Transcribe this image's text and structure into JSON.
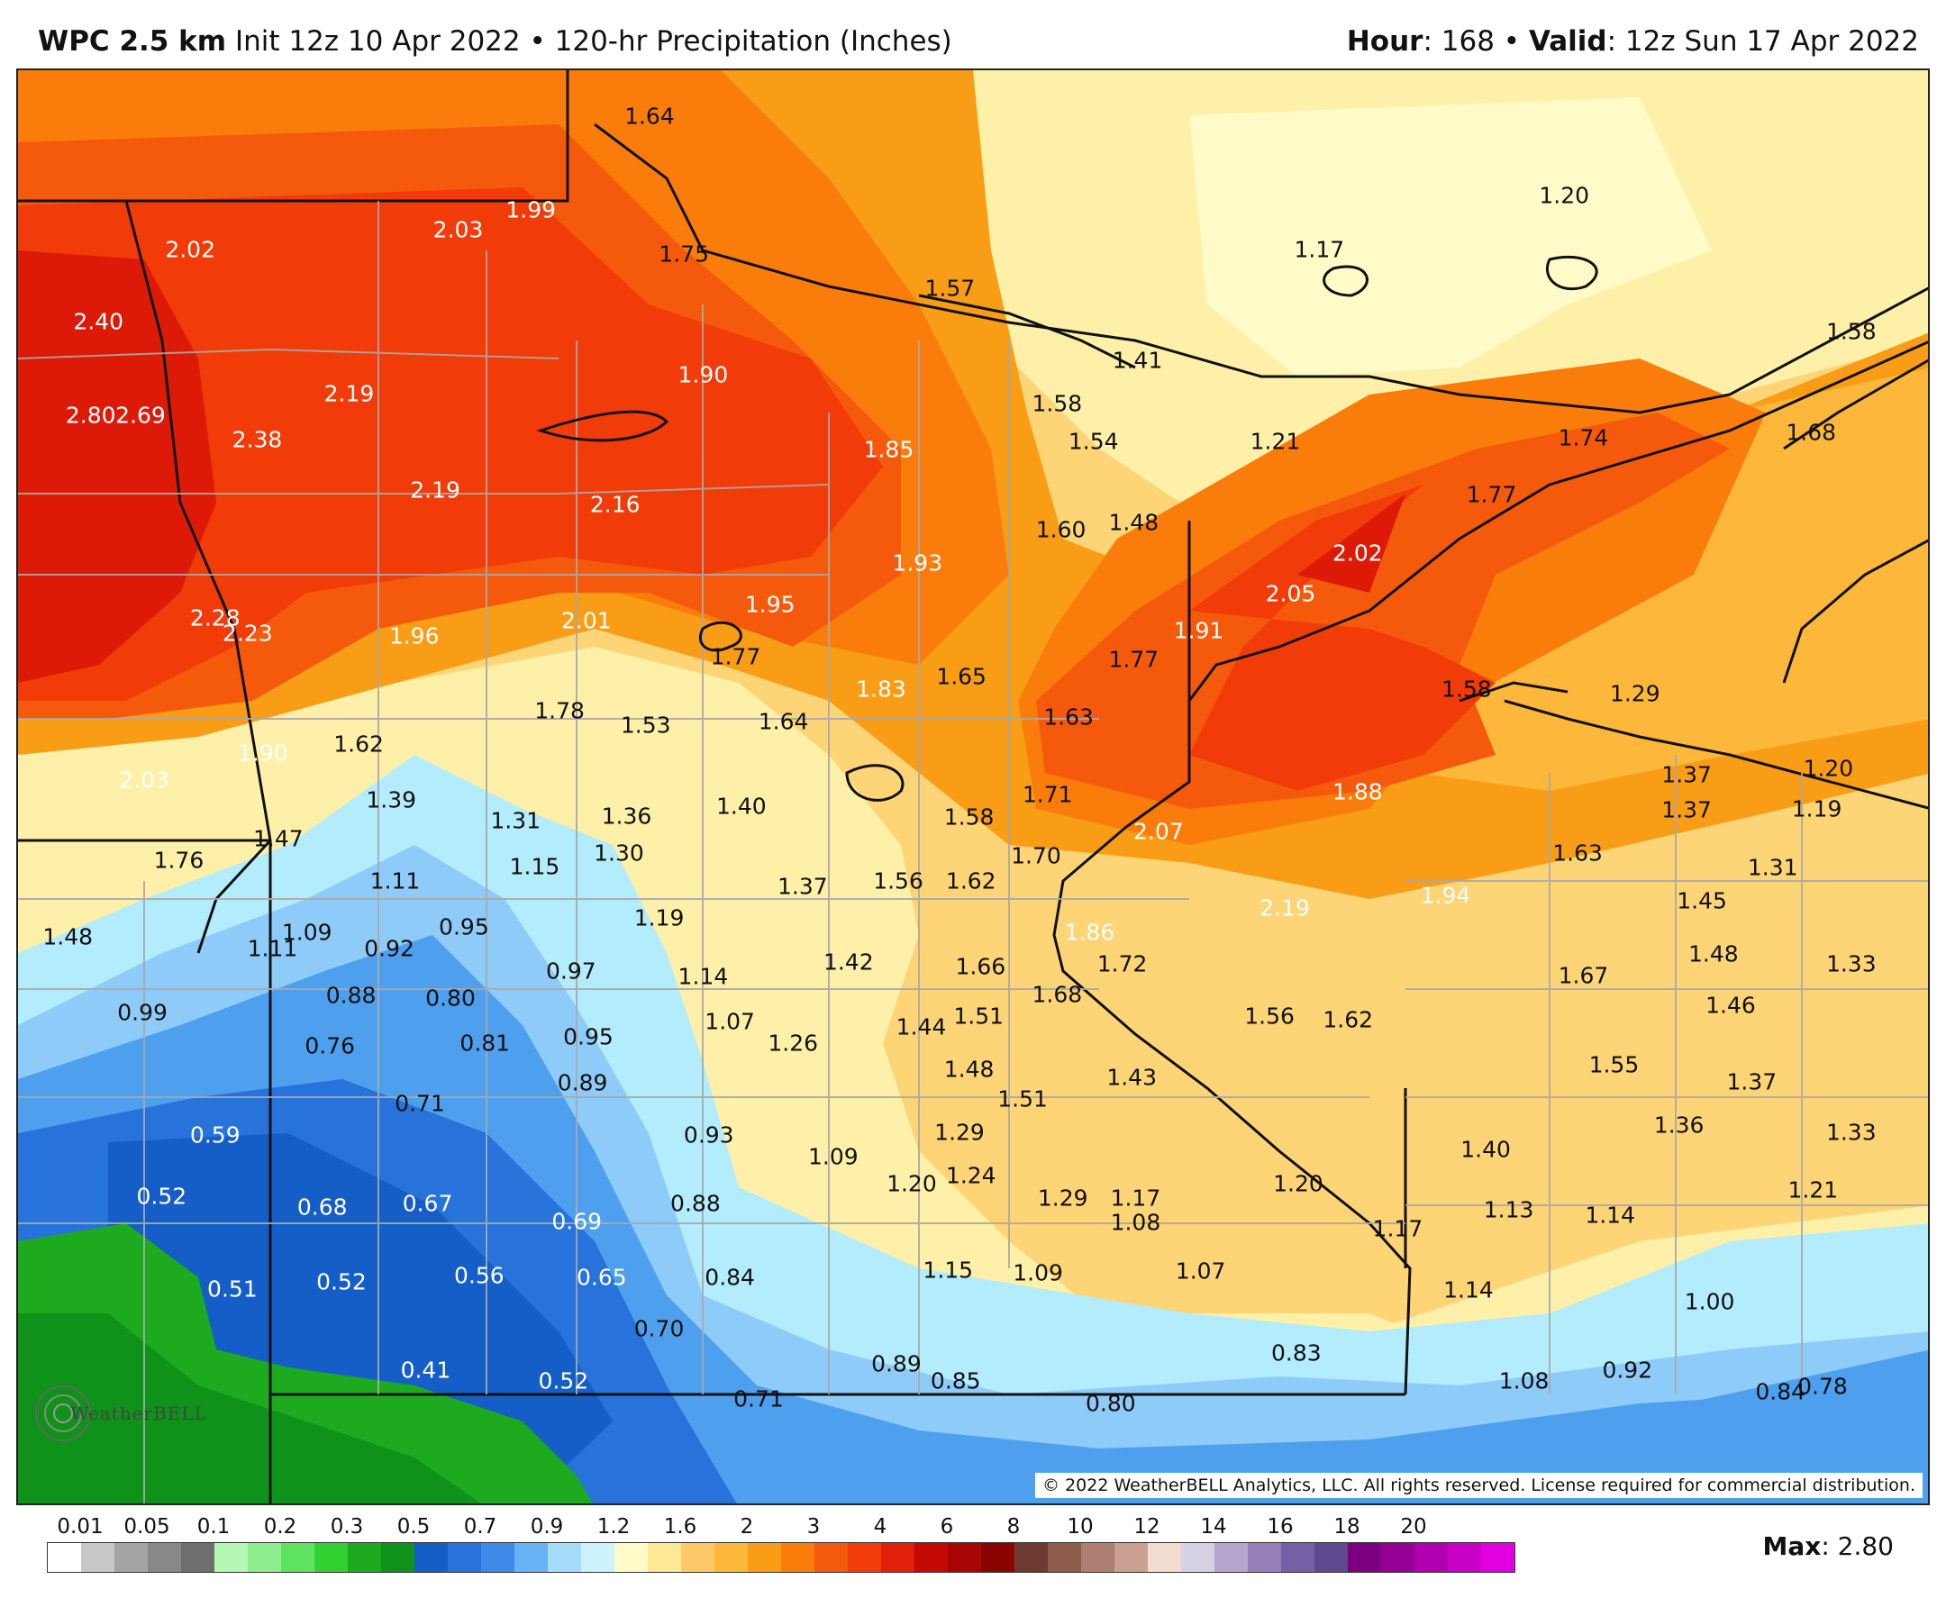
{
  "header": {
    "model_name": "WPC 2.5 km",
    "init": "Init 12z 10 Apr 2022",
    "separator": "•",
    "product": "120-hr Precipitation (Inches)",
    "hour_label": "Hour",
    "hour_value": ": 168",
    "valid_label": "Valid",
    "valid_value": ": 12z Sun 17 Apr 2022"
  },
  "map": {
    "copyright": "© 2022 WeatherBELL Analytics, LLC. All rights reserved. License required for commercial distribution.",
    "logo_text": "WeatherBELL",
    "colors": {
      "deep_red": "#dd1a07",
      "red": "#f13b08",
      "red_orange": "#f55a0c",
      "orange": "#fa7d0c",
      "orange_light": "#fa9d16",
      "orange_pale": "#fdb73b",
      "gold": "#fdd476",
      "yellow": "#fef0a8",
      "yellow_pale": "#fffbc8",
      "cyan": "#b3ecfc",
      "sky": "#8fcbf8",
      "blue": "#4ea0ef",
      "blue_dark": "#2772db",
      "navy": "#155dc7",
      "green": "#1eaa1e",
      "green_dark": "#0f921a"
    },
    "labels": [
      {
        "text": "1.64",
        "lx": 0.33,
        "ly": 0.032,
        "tone": "dark"
      },
      {
        "text": "2.02",
        "lx": 0.09,
        "ly": 0.125,
        "tone": "light"
      },
      {
        "text": "2.03",
        "lx": 0.23,
        "ly": 0.111,
        "tone": "light"
      },
      {
        "text": "1.99",
        "lx": 0.268,
        "ly": 0.097,
        "tone": "light"
      },
      {
        "text": "1.75",
        "lx": 0.348,
        "ly": 0.128,
        "tone": "dark"
      },
      {
        "text": "1.57",
        "lx": 0.487,
        "ly": 0.152,
        "tone": "dark"
      },
      {
        "text": "1.17",
        "lx": 0.68,
        "ly": 0.125,
        "tone": "dark"
      },
      {
        "text": "1.20",
        "lx": 0.808,
        "ly": 0.087,
        "tone": "dark"
      },
      {
        "text": "2.40",
        "lx": 0.042,
        "ly": 0.175,
        "tone": "light"
      },
      {
        "text": "1.90",
        "lx": 0.358,
        "ly": 0.212,
        "tone": "light"
      },
      {
        "text": "1.41",
        "lx": 0.585,
        "ly": 0.202,
        "tone": "dark"
      },
      {
        "text": "1.58",
        "lx": 0.958,
        "ly": 0.182,
        "tone": "dark"
      },
      {
        "text": "2.19",
        "lx": 0.173,
        "ly": 0.225,
        "tone": "light"
      },
      {
        "text": "1.58",
        "lx": 0.543,
        "ly": 0.232,
        "tone": "dark"
      },
      {
        "text": "2.80",
        "lx": 0.038,
        "ly": 0.24,
        "tone": "light"
      },
      {
        "text": "2.69",
        "lx": 0.064,
        "ly": 0.24,
        "tone": "light"
      },
      {
        "text": "2.38",
        "lx": 0.125,
        "ly": 0.257,
        "tone": "light"
      },
      {
        "text": "1.85",
        "lx": 0.455,
        "ly": 0.264,
        "tone": "light"
      },
      {
        "text": "1.54",
        "lx": 0.562,
        "ly": 0.258,
        "tone": "dark"
      },
      {
        "text": "1.21",
        "lx": 0.657,
        "ly": 0.258,
        "tone": "dark"
      },
      {
        "text": "1.74",
        "lx": 0.818,
        "ly": 0.256,
        "tone": "dark"
      },
      {
        "text": "1.68",
        "lx": 0.937,
        "ly": 0.252,
        "tone": "dark"
      },
      {
        "text": "2.19",
        "lx": 0.218,
        "ly": 0.292,
        "tone": "light"
      },
      {
        "text": "2.16",
        "lx": 0.312,
        "ly": 0.302,
        "tone": "light"
      },
      {
        "text": "1.77",
        "lx": 0.77,
        "ly": 0.295,
        "tone": "dark"
      },
      {
        "text": "1.60",
        "lx": 0.545,
        "ly": 0.32,
        "tone": "dark"
      },
      {
        "text": "1.48",
        "lx": 0.583,
        "ly": 0.315,
        "tone": "dark"
      },
      {
        "text": "1.93",
        "lx": 0.47,
        "ly": 0.343,
        "tone": "light"
      },
      {
        "text": "2.02",
        "lx": 0.7,
        "ly": 0.336,
        "tone": "light"
      },
      {
        "text": "1.95",
        "lx": 0.393,
        "ly": 0.372,
        "tone": "light"
      },
      {
        "text": "2.05",
        "lx": 0.665,
        "ly": 0.364,
        "tone": "light"
      },
      {
        "text": "2.28",
        "lx": 0.103,
        "ly": 0.381,
        "tone": "light"
      },
      {
        "text": "2.23",
        "lx": 0.12,
        "ly": 0.392,
        "tone": "light"
      },
      {
        "text": "1.96",
        "lx": 0.207,
        "ly": 0.394,
        "tone": "light"
      },
      {
        "text": "2.01",
        "lx": 0.297,
        "ly": 0.383,
        "tone": "light"
      },
      {
        "text": "1.91",
        "lx": 0.617,
        "ly": 0.39,
        "tone": "light"
      },
      {
        "text": "1.77",
        "lx": 0.375,
        "ly": 0.408,
        "tone": "dark"
      },
      {
        "text": "1.77",
        "lx": 0.583,
        "ly": 0.41,
        "tone": "dark"
      },
      {
        "text": "1.58",
        "lx": 0.757,
        "ly": 0.431,
        "tone": "dark"
      },
      {
        "text": "1.29",
        "lx": 0.845,
        "ly": 0.434,
        "tone": "dark"
      },
      {
        "text": "1.65",
        "lx": 0.493,
        "ly": 0.422,
        "tone": "dark"
      },
      {
        "text": "1.83",
        "lx": 0.451,
        "ly": 0.431,
        "tone": "light"
      },
      {
        "text": "1.78",
        "lx": 0.283,
        "ly": 0.446,
        "tone": "dark"
      },
      {
        "text": "1.53",
        "lx": 0.328,
        "ly": 0.456,
        "tone": "dark"
      },
      {
        "text": "1.64",
        "lx": 0.4,
        "ly": 0.453,
        "tone": "dark"
      },
      {
        "text": "1.63",
        "lx": 0.549,
        "ly": 0.45,
        "tone": "dark"
      },
      {
        "text": "1.62",
        "lx": 0.178,
        "ly": 0.469,
        "tone": "dark"
      },
      {
        "text": "1.90",
        "lx": 0.128,
        "ly": 0.475,
        "tone": "light"
      },
      {
        "text": "2.03",
        "lx": 0.066,
        "ly": 0.494,
        "tone": "light"
      },
      {
        "text": "1.37",
        "lx": 0.872,
        "ly": 0.49,
        "tone": "dark"
      },
      {
        "text": "1.20",
        "lx": 0.946,
        "ly": 0.486,
        "tone": "dark"
      },
      {
        "text": "1.71",
        "lx": 0.538,
        "ly": 0.504,
        "tone": "dark"
      },
      {
        "text": "1.88",
        "lx": 0.7,
        "ly": 0.502,
        "tone": "light"
      },
      {
        "text": "1.39",
        "lx": 0.195,
        "ly": 0.508,
        "tone": "dark"
      },
      {
        "text": "1.40",
        "lx": 0.378,
        "ly": 0.512,
        "tone": "dark"
      },
      {
        "text": "1.36",
        "lx": 0.318,
        "ly": 0.519,
        "tone": "dark"
      },
      {
        "text": "1.31",
        "lx": 0.26,
        "ly": 0.522,
        "tone": "dark"
      },
      {
        "text": "1.58",
        "lx": 0.497,
        "ly": 0.52,
        "tone": "dark"
      },
      {
        "text": "1.37",
        "lx": 0.872,
        "ly": 0.515,
        "tone": "dark"
      },
      {
        "text": "1.19",
        "lx": 0.94,
        "ly": 0.514,
        "tone": "dark"
      },
      {
        "text": "1.47",
        "lx": 0.136,
        "ly": 0.535,
        "tone": "dark"
      },
      {
        "text": "2.07",
        "lx": 0.596,
        "ly": 0.53,
        "tone": "light"
      },
      {
        "text": "1.76",
        "lx": 0.084,
        "ly": 0.55,
        "tone": "dark"
      },
      {
        "text": "1.30",
        "lx": 0.314,
        "ly": 0.545,
        "tone": "dark"
      },
      {
        "text": "1.15",
        "lx": 0.27,
        "ly": 0.554,
        "tone": "dark"
      },
      {
        "text": "1.70",
        "lx": 0.532,
        "ly": 0.547,
        "tone": "dark"
      },
      {
        "text": "1.63",
        "lx": 0.815,
        "ly": 0.545,
        "tone": "dark"
      },
      {
        "text": "1.31",
        "lx": 0.917,
        "ly": 0.555,
        "tone": "dark"
      },
      {
        "text": "1.11",
        "lx": 0.197,
        "ly": 0.564,
        "tone": "dark"
      },
      {
        "text": "1.37",
        "lx": 0.41,
        "ly": 0.568,
        "tone": "dark"
      },
      {
        "text": "1.56",
        "lx": 0.46,
        "ly": 0.564,
        "tone": "dark"
      },
      {
        "text": "1.62",
        "lx": 0.498,
        "ly": 0.564,
        "tone": "dark"
      },
      {
        "text": "1.94",
        "lx": 0.746,
        "ly": 0.574,
        "tone": "light"
      },
      {
        "text": "2.19",
        "lx": 0.662,
        "ly": 0.583,
        "tone": "light"
      },
      {
        "text": "1.45",
        "lx": 0.88,
        "ly": 0.578,
        "tone": "dark"
      },
      {
        "text": "1.19",
        "lx": 0.335,
        "ly": 0.59,
        "tone": "dark"
      },
      {
        "text": "0.95",
        "lx": 0.233,
        "ly": 0.596,
        "tone": "dark"
      },
      {
        "text": "1.09",
        "lx": 0.151,
        "ly": 0.6,
        "tone": "dark"
      },
      {
        "text": "1.86",
        "lx": 0.56,
        "ly": 0.6,
        "tone": "light"
      },
      {
        "text": "1.48",
        "lx": 0.026,
        "ly": 0.603,
        "tone": "dark"
      },
      {
        "text": "1.11",
        "lx": 0.133,
        "ly": 0.611,
        "tone": "dark"
      },
      {
        "text": "0.92",
        "lx": 0.194,
        "ly": 0.611,
        "tone": "dark"
      },
      {
        "text": "1.42",
        "lx": 0.434,
        "ly": 0.621,
        "tone": "dark"
      },
      {
        "text": "1.72",
        "lx": 0.577,
        "ly": 0.622,
        "tone": "dark"
      },
      {
        "text": "1.48",
        "lx": 0.886,
        "ly": 0.615,
        "tone": "dark"
      },
      {
        "text": "1.33",
        "lx": 0.958,
        "ly": 0.622,
        "tone": "dark"
      },
      {
        "text": "0.97",
        "lx": 0.289,
        "ly": 0.627,
        "tone": "dark"
      },
      {
        "text": "1.14",
        "lx": 0.358,
        "ly": 0.631,
        "tone": "dark"
      },
      {
        "text": "1.66",
        "lx": 0.503,
        "ly": 0.624,
        "tone": "dark"
      },
      {
        "text": "1.67",
        "lx": 0.818,
        "ly": 0.63,
        "tone": "dark"
      },
      {
        "text": "0.88",
        "lx": 0.174,
        "ly": 0.644,
        "tone": "dark"
      },
      {
        "text": "0.80",
        "lx": 0.226,
        "ly": 0.646,
        "tone": "dark"
      },
      {
        "text": "1.68",
        "lx": 0.543,
        "ly": 0.643,
        "tone": "dark"
      },
      {
        "text": "0.99",
        "lx": 0.065,
        "ly": 0.656,
        "tone": "dark"
      },
      {
        "text": "1.56",
        "lx": 0.654,
        "ly": 0.658,
        "tone": "dark"
      },
      {
        "text": "1.62",
        "lx": 0.695,
        "ly": 0.661,
        "tone": "dark"
      },
      {
        "text": "1.46",
        "lx": 0.895,
        "ly": 0.651,
        "tone": "dark"
      },
      {
        "text": "1.07",
        "lx": 0.372,
        "ly": 0.662,
        "tone": "dark"
      },
      {
        "text": "1.51",
        "lx": 0.502,
        "ly": 0.658,
        "tone": "dark"
      },
      {
        "text": "1.44",
        "lx": 0.472,
        "ly": 0.666,
        "tone": "dark"
      },
      {
        "text": "0.81",
        "lx": 0.244,
        "ly": 0.677,
        "tone": "dark"
      },
      {
        "text": "0.95",
        "lx": 0.298,
        "ly": 0.673,
        "tone": "dark"
      },
      {
        "text": "0.76",
        "lx": 0.163,
        "ly": 0.679,
        "tone": "dark"
      },
      {
        "text": "1.26",
        "lx": 0.405,
        "ly": 0.677,
        "tone": "dark"
      },
      {
        "text": "1.48",
        "lx": 0.497,
        "ly": 0.695,
        "tone": "dark"
      },
      {
        "text": "1.43",
        "lx": 0.582,
        "ly": 0.701,
        "tone": "dark"
      },
      {
        "text": "1.55",
        "lx": 0.834,
        "ly": 0.692,
        "tone": "dark"
      },
      {
        "text": "0.89",
        "lx": 0.295,
        "ly": 0.705,
        "tone": "dark"
      },
      {
        "text": "1.51",
        "lx": 0.525,
        "ly": 0.716,
        "tone": "dark"
      },
      {
        "text": "1.37",
        "lx": 0.906,
        "ly": 0.704,
        "tone": "dark"
      },
      {
        "text": "0.71",
        "lx": 0.21,
        "ly": 0.719,
        "tone": "dark"
      },
      {
        "text": "0.59",
        "lx": 0.103,
        "ly": 0.741,
        "tone": "light"
      },
      {
        "text": "0.93",
        "lx": 0.361,
        "ly": 0.741,
        "tone": "dark"
      },
      {
        "text": "1.29",
        "lx": 0.492,
        "ly": 0.739,
        "tone": "dark"
      },
      {
        "text": "1.36",
        "lx": 0.868,
        "ly": 0.734,
        "tone": "dark"
      },
      {
        "text": "1.33",
        "lx": 0.958,
        "ly": 0.739,
        "tone": "dark"
      },
      {
        "text": "1.09",
        "lx": 0.426,
        "ly": 0.756,
        "tone": "dark"
      },
      {
        "text": "1.40",
        "lx": 0.767,
        "ly": 0.751,
        "tone": "dark"
      },
      {
        "text": "1.20",
        "lx": 0.467,
        "ly": 0.775,
        "tone": "dark"
      },
      {
        "text": "1.24",
        "lx": 0.498,
        "ly": 0.769,
        "tone": "dark"
      },
      {
        "text": "1.20",
        "lx": 0.669,
        "ly": 0.775,
        "tone": "dark"
      },
      {
        "text": "1.21",
        "lx": 0.938,
        "ly": 0.779,
        "tone": "dark"
      },
      {
        "text": "0.52",
        "lx": 0.075,
        "ly": 0.784,
        "tone": "light"
      },
      {
        "text": "0.68",
        "lx": 0.159,
        "ly": 0.791,
        "tone": "light"
      },
      {
        "text": "0.67",
        "lx": 0.214,
        "ly": 0.789,
        "tone": "light"
      },
      {
        "text": "0.69",
        "lx": 0.292,
        "ly": 0.801,
        "tone": "light"
      },
      {
        "text": "0.88",
        "lx": 0.354,
        "ly": 0.789,
        "tone": "dark"
      },
      {
        "text": "1.29",
        "lx": 0.546,
        "ly": 0.785,
        "tone": "dark"
      },
      {
        "text": "1.17",
        "lx": 0.584,
        "ly": 0.785,
        "tone": "dark"
      },
      {
        "text": "1.08",
        "lx": 0.584,
        "ly": 0.802,
        "tone": "dark"
      },
      {
        "text": "1.17",
        "lx": 0.721,
        "ly": 0.806,
        "tone": "dark"
      },
      {
        "text": "1.13",
        "lx": 0.779,
        "ly": 0.793,
        "tone": "dark"
      },
      {
        "text": "1.14",
        "lx": 0.832,
        "ly": 0.797,
        "tone": "dark"
      },
      {
        "text": "1.15",
        "lx": 0.486,
        "ly": 0.835,
        "tone": "dark"
      },
      {
        "text": "1.09",
        "lx": 0.533,
        "ly": 0.837,
        "tone": "dark"
      },
      {
        "text": "1.07",
        "lx": 0.618,
        "ly": 0.836,
        "tone": "dark"
      },
      {
        "text": "0.56",
        "lx": 0.241,
        "ly": 0.839,
        "tone": "light"
      },
      {
        "text": "0.65",
        "lx": 0.305,
        "ly": 0.84,
        "tone": "light"
      },
      {
        "text": "0.84",
        "lx": 0.372,
        "ly": 0.84,
        "tone": "dark"
      },
      {
        "text": "0.52",
        "lx": 0.169,
        "ly": 0.843,
        "tone": "light"
      },
      {
        "text": "0.51",
        "lx": 0.112,
        "ly": 0.848,
        "tone": "light"
      },
      {
        "text": "1.14",
        "lx": 0.758,
        "ly": 0.849,
        "tone": "dark"
      },
      {
        "text": "1.00",
        "lx": 0.884,
        "ly": 0.857,
        "tone": "dark"
      },
      {
        "text": "0.70",
        "lx": 0.335,
        "ly": 0.876,
        "tone": "dark"
      },
      {
        "text": "0.83",
        "lx": 0.668,
        "ly": 0.893,
        "tone": "dark"
      },
      {
        "text": "0.89",
        "lx": 0.459,
        "ly": 0.9,
        "tone": "dark"
      },
      {
        "text": "0.41",
        "lx": 0.213,
        "ly": 0.905,
        "tone": "light"
      },
      {
        "text": "0.52",
        "lx": 0.285,
        "ly": 0.912,
        "tone": "light"
      },
      {
        "text": "0.85",
        "lx": 0.49,
        "ly": 0.912,
        "tone": "dark"
      },
      {
        "text": "1.08",
        "lx": 0.787,
        "ly": 0.912,
        "tone": "dark"
      },
      {
        "text": "0.92",
        "lx": 0.841,
        "ly": 0.905,
        "tone": "dark"
      },
      {
        "text": "0.84",
        "lx": 0.921,
        "ly": 0.92,
        "tone": "dark"
      },
      {
        "text": "0.78",
        "lx": 0.943,
        "ly": 0.916,
        "tone": "dark"
      },
      {
        "text": "0.71",
        "lx": 0.387,
        "ly": 0.925,
        "tone": "dark"
      },
      {
        "text": "0.80",
        "lx": 0.571,
        "ly": 0.928,
        "tone": "dark"
      }
    ]
  },
  "legend": {
    "ticks": [
      "0.01",
      "0.05",
      "0.1",
      "0.2",
      "0.3",
      "0.5",
      "0.7",
      "0.9",
      "1.2",
      "1.6",
      "2",
      "3",
      "4",
      "6",
      "8",
      "10",
      "12",
      "14",
      "16",
      "18",
      "20"
    ],
    "colors": [
      "#ffffff",
      "#c8c8c8",
      "#a4a4a4",
      "#888888",
      "#6e6e6e",
      "#b5f7b5",
      "#8cee8c",
      "#5fe25f",
      "#32d132",
      "#1eaa1e",
      "#0f921a",
      "#155dc7",
      "#2772db",
      "#3e8ae8",
      "#69b2f5",
      "#a6dcfb",
      "#cdf3fe",
      "#fffbc8",
      "#fde994",
      "#fdc968",
      "#fdb73b",
      "#fa9d16",
      "#fa7d0c",
      "#f55a0c",
      "#f13b08",
      "#e02008",
      "#c50a05",
      "#a80604",
      "#8c0402",
      "#6c3a30",
      "#8d5c4d",
      "#ad7f72",
      "#c9a092",
      "#f2dccf",
      "#d5d0e2",
      "#b4a6cc",
      "#9580b8",
      "#7460a4",
      "#5e4990",
      "#7c0080",
      "#950095",
      "#b000b0",
      "#c800c8",
      "#e000e0"
    ],
    "max_label": "Max",
    "max_value": ": 2.80"
  }
}
